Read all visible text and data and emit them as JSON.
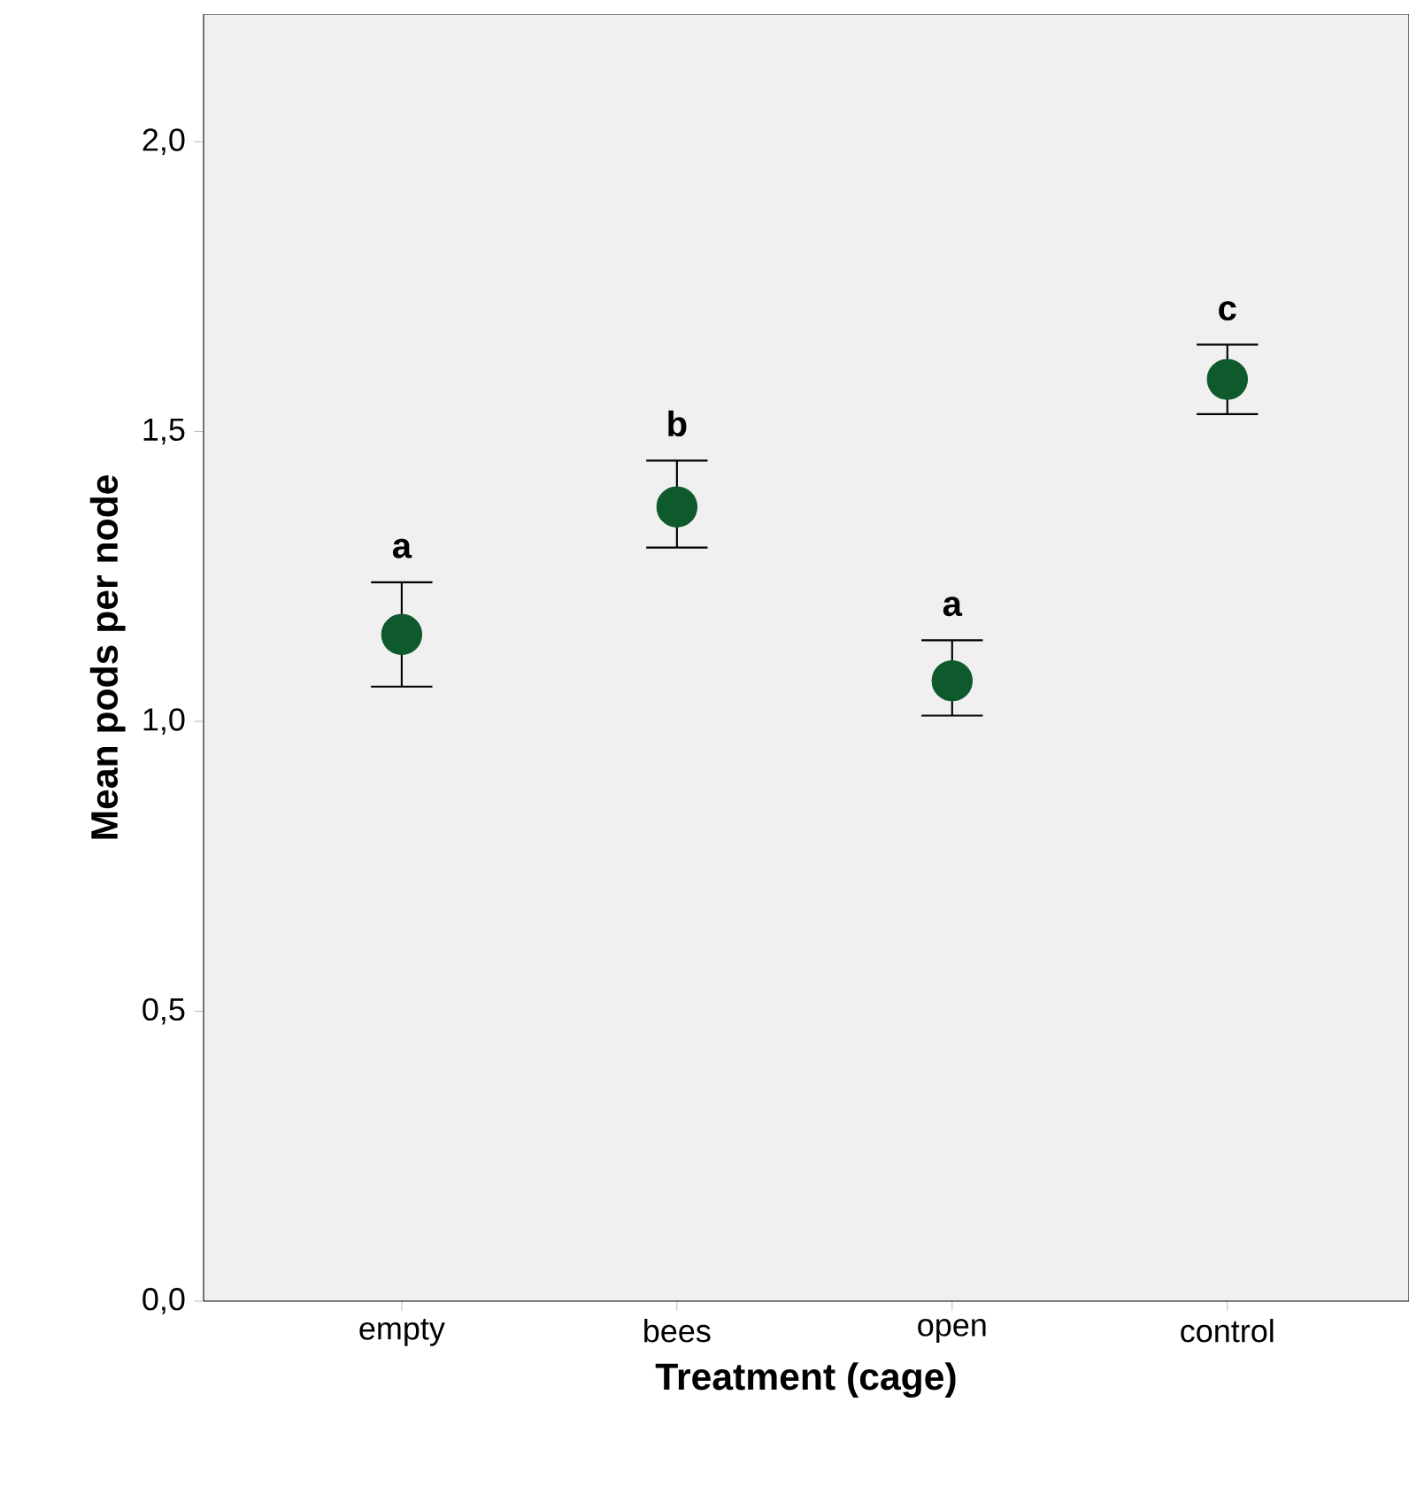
{
  "chart_data": {
    "type": "scatter",
    "xlabel": "Treatment (cage)",
    "ylabel": "Mean pods per node",
    "categories": [
      "empty",
      "bees",
      "open",
      "control"
    ],
    "series": [
      {
        "color": "#0f5a2c",
        "values": [
          1.15,
          1.37,
          1.07,
          1.59
        ],
        "errors": [
          [
            1.06,
            1.24
          ],
          [
            1.3,
            1.45
          ],
          [
            1.01,
            1.14
          ],
          [
            1.53,
            1.65
          ]
        ]
      }
    ],
    "ylim": [
      0,
      2.22
    ],
    "yticks": [
      {
        "value": 0,
        "label": "0,0"
      },
      {
        "value": 0.5,
        "label": "0,5"
      },
      {
        "value": 1,
        "label": "1,0"
      },
      {
        "value": 1.5,
        "label": "1,5"
      },
      {
        "value": 2,
        "label": "2,0"
      }
    ],
    "annotations": [
      "a",
      "b",
      "a",
      "c"
    ],
    "marker": "circle",
    "grid": false
  }
}
